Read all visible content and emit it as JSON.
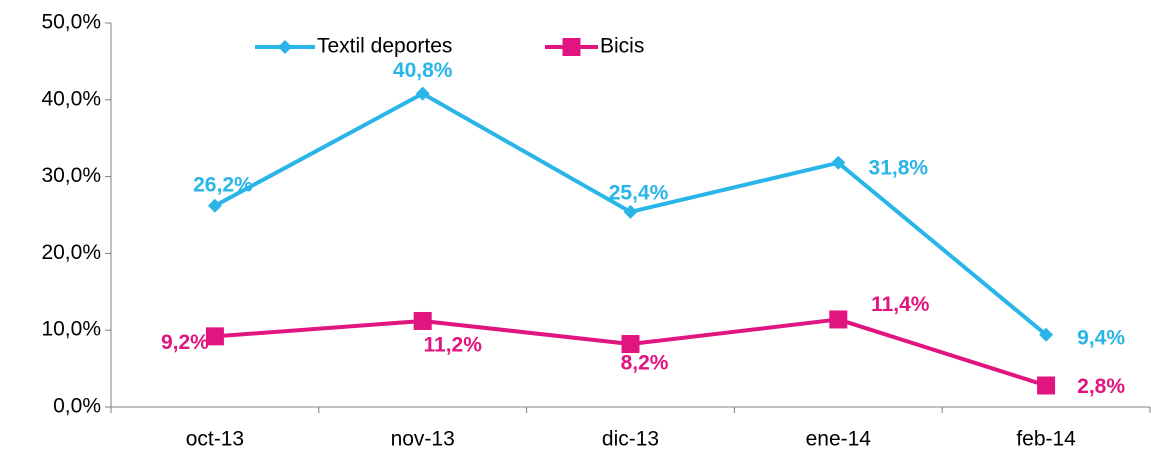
{
  "chart_data": {
    "type": "line",
    "categories": [
      "oct-13",
      "nov-13",
      "dic-13",
      "ene-14",
      "feb-14"
    ],
    "series": [
      {
        "name": "Textil deportes",
        "color": "#29b5e8",
        "marker": "diamond",
        "values": [
          26.2,
          40.8,
          25.4,
          31.8,
          9.4
        ],
        "value_labels": [
          "26,2%",
          "40,8%",
          "25,4%",
          "31,8%",
          "9,4%"
        ]
      },
      {
        "name": "Bicis",
        "color": "#e0157f",
        "marker": "square",
        "values": [
          9.2,
          11.2,
          8.2,
          11.4,
          2.8
        ],
        "value_labels": [
          "9,2%",
          "11,2%",
          "8,2%",
          "11,4%",
          "2,8%"
        ]
      }
    ],
    "ylim": [
      0,
      50
    ],
    "yticks": [
      {
        "value": 0,
        "label": "0,0%"
      },
      {
        "value": 10,
        "label": "10,0%"
      },
      {
        "value": 20,
        "label": "20,0%"
      },
      {
        "value": 30,
        "label": "30,0%"
      },
      {
        "value": 40,
        "label": "40,0%"
      },
      {
        "value": 50,
        "label": "50,0%"
      }
    ],
    "grid": false,
    "legend": "top"
  }
}
